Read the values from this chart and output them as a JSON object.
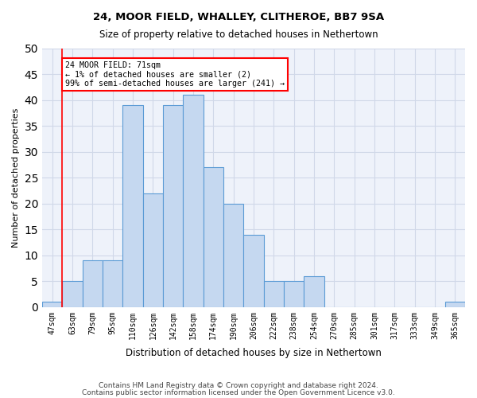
{
  "title1": "24, MOOR FIELD, WHALLEY, CLITHEROE, BB7 9SA",
  "title2": "Size of property relative to detached houses in Nethertown",
  "xlabel": "Distribution of detached houses by size in Nethertown",
  "ylabel": "Number of detached properties",
  "categories": [
    "47sqm",
    "63sqm",
    "79sqm",
    "95sqm",
    "110sqm",
    "126sqm",
    "142sqm",
    "158sqm",
    "174sqm",
    "190sqm",
    "206sqm",
    "222sqm",
    "238sqm",
    "254sqm",
    "270sqm",
    "285sqm",
    "301sqm",
    "317sqm",
    "333sqm",
    "349sqm",
    "365sqm"
  ],
  "values": [
    1,
    5,
    9,
    9,
    39,
    22,
    39,
    41,
    27,
    20,
    14,
    5,
    5,
    6,
    0,
    0,
    0,
    0,
    0,
    0,
    1
  ],
  "bar_color": "#c5d8f0",
  "bar_edge_color": "#5b9bd5",
  "highlight_bar_index": 1,
  "vline_x": 1,
  "annotation_text": "24 MOOR FIELD: 71sqm\n← 1% of detached houses are smaller (2)\n99% of semi-detached houses are larger (241) →",
  "annotation_box_color": "white",
  "annotation_box_edge_color": "red",
  "vline_color": "red",
  "ylim": [
    0,
    50
  ],
  "yticks": [
    0,
    5,
    10,
    15,
    20,
    25,
    30,
    35,
    40,
    45,
    50
  ],
  "grid_color": "#d0d8e8",
  "bg_color": "#eef2fa",
  "footer1": "Contains HM Land Registry data © Crown copyright and database right 2024.",
  "footer2": "Contains public sector information licensed under the Open Government Licence v3.0."
}
